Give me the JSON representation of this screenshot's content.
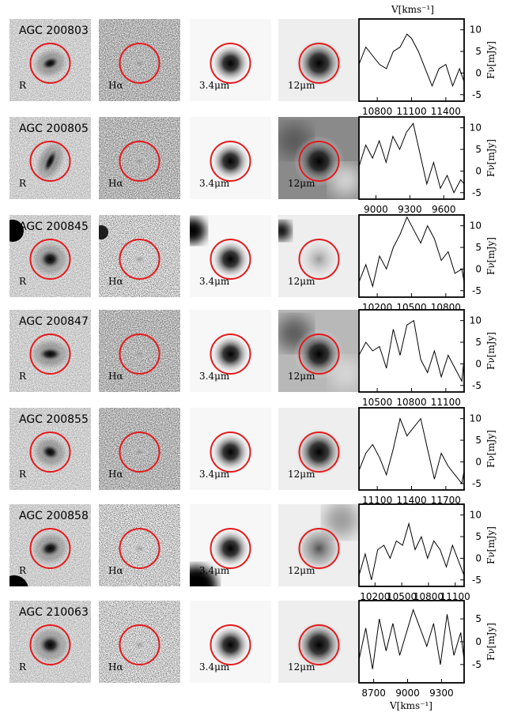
{
  "figure": {
    "top_axis_label": "V[kms⁻¹]",
    "bottom_axis_label": "V[kms⁻¹]",
    "flux_label": "Fν[mJy]",
    "band_labels": [
      "R",
      "Hα",
      "3.4μm",
      "12μm"
    ],
    "aperture_color": "#e41a1c"
  },
  "chart_data": [
    {
      "type": "line",
      "name": "AGC 200803",
      "xticks": [
        10800,
        11100,
        11400
      ],
      "xlim": [
        10640,
        11560
      ],
      "yticks": [
        10,
        5,
        0,
        -5
      ],
      "ylim": [
        -6.5,
        12.5
      ],
      "x": [
        10640,
        10700,
        10760,
        10820,
        10880,
        10940,
        11000,
        11060,
        11100,
        11160,
        11220,
        11280,
        11340,
        11400,
        11460,
        11520,
        11560
      ],
      "values": [
        2,
        6,
        4,
        2,
        1,
        5,
        6,
        9,
        8,
        5,
        1,
        -3,
        1,
        2,
        -3,
        1,
        -2
      ]
    },
    {
      "type": "line",
      "name": "AGC 200805",
      "xticks": [
        9000,
        9300,
        9600
      ],
      "xlim": [
        8850,
        9780
      ],
      "yticks": [
        10,
        5,
        0,
        -5
      ],
      "ylim": [
        -6.5,
        12.5
      ],
      "x": [
        8850,
        8910,
        8970,
        9030,
        9090,
        9150,
        9210,
        9270,
        9330,
        9390,
        9450,
        9510,
        9570,
        9630,
        9690,
        9750,
        9780
      ],
      "values": [
        1,
        6,
        3,
        7,
        2,
        8,
        5,
        9,
        11,
        4,
        -3,
        2,
        -4,
        -1,
        -5,
        -2,
        -3
      ]
    },
    {
      "type": "line",
      "name": "AGC 200845",
      "xticks": [
        10200,
        10500,
        10800
      ],
      "xlim": [
        10040,
        10960
      ],
      "yticks": [
        10,
        5,
        0,
        -5
      ],
      "ylim": [
        -6.5,
        12.5
      ],
      "x": [
        10040,
        10100,
        10160,
        10220,
        10280,
        10340,
        10400,
        10460,
        10520,
        10580,
        10640,
        10700,
        10760,
        10820,
        10880,
        10940,
        10960
      ],
      "values": [
        -3,
        1,
        -4,
        3,
        0,
        5,
        8,
        12,
        9,
        6,
        10,
        7,
        2,
        4,
        -1,
        0,
        -3
      ]
    },
    {
      "type": "line",
      "name": "AGC 200847",
      "xticks": [
        10500,
        10800,
        11100
      ],
      "xlim": [
        10340,
        11260
      ],
      "yticks": [
        10,
        5,
        0,
        -5
      ],
      "ylim": [
        -6.5,
        12.5
      ],
      "x": [
        10340,
        10400,
        10460,
        10520,
        10580,
        10640,
        10700,
        10760,
        10820,
        10880,
        10940,
        11000,
        11060,
        11120,
        11180,
        11240,
        11260
      ],
      "values": [
        2,
        5,
        3,
        4,
        -1,
        8,
        2,
        9,
        10,
        1,
        -2,
        3,
        -3,
        2,
        -1,
        -4,
        1
      ]
    },
    {
      "type": "line",
      "name": "AGC 200855",
      "xticks": [
        11100,
        11400,
        11700
      ],
      "xlim": [
        10940,
        11860
      ],
      "yticks": [
        10,
        5,
        0,
        -5
      ],
      "ylim": [
        -6.5,
        12.5
      ],
      "x": [
        10940,
        11000,
        11060,
        11120,
        11180,
        11240,
        11300,
        11360,
        11420,
        11480,
        11540,
        11600,
        11660,
        11720,
        11780,
        11840,
        11860
      ],
      "values": [
        -2,
        2,
        4,
        1,
        -3,
        3,
        10,
        6,
        8,
        10,
        3,
        -4,
        2,
        -1,
        -3,
        -5,
        -2
      ]
    },
    {
      "type": "line",
      "name": "AGC 200858",
      "xticks": [
        10200,
        10500,
        10800,
        11100
      ],
      "xlim": [
        10020,
        11200
      ],
      "yticks": [
        10,
        5,
        0,
        -5
      ],
      "ylim": [
        -6.5,
        12.5
      ],
      "x": [
        10020,
        10090,
        10160,
        10230,
        10300,
        10370,
        10440,
        10510,
        10580,
        10650,
        10720,
        10790,
        10860,
        10930,
        11000,
        11070,
        11200
      ],
      "values": [
        -4,
        1,
        -5,
        2,
        3,
        0,
        4,
        3,
        8,
        2,
        5,
        0,
        4,
        2,
        -2,
        3,
        -4
      ]
    },
    {
      "type": "line",
      "name": "AGC 210063",
      "xticks": [
        8700,
        9000,
        9300
      ],
      "xlim": [
        8570,
        9500
      ],
      "yticks": [
        5,
        0,
        -5
      ],
      "ylim": [
        -9,
        9
      ],
      "x": [
        8570,
        8630,
        8690,
        8750,
        8810,
        8870,
        8930,
        8990,
        9050,
        9110,
        9170,
        9230,
        9290,
        9350,
        9410,
        9470,
        9500
      ],
      "values": [
        -4,
        3,
        -6,
        5,
        -2,
        4,
        -3,
        2,
        7,
        3,
        -1,
        4,
        -5,
        6,
        -3,
        2,
        -4
      ]
    }
  ],
  "rows": [
    {
      "name": "AGC 200803"
    },
    {
      "name": "AGC 200805"
    },
    {
      "name": "AGC 200845"
    },
    {
      "name": "AGC 200847"
    },
    {
      "name": "AGC 200855"
    },
    {
      "name": "AGC 200858"
    },
    {
      "name": "AGC 210063"
    }
  ]
}
